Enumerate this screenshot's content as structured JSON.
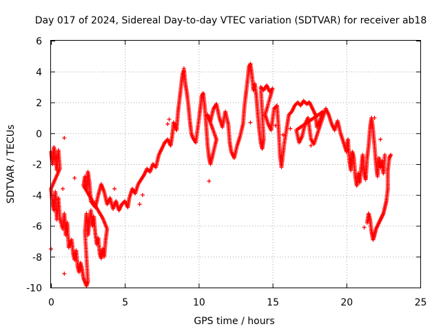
{
  "chart_data": {
    "type": "scatter",
    "title": "Day 017 of 2024, Sidereal Day-to-day VTEC variation (SDTVAR) for receiver ab18",
    "xlabel": "GPS time / hours",
    "ylabel": "SDTVAR / TECUs",
    "xlim": [
      0,
      25
    ],
    "ylim": [
      -10,
      6
    ],
    "xticks": [
      0,
      5,
      10,
      15,
      20,
      25
    ],
    "yticks": [
      -10,
      -8,
      -6,
      -4,
      -2,
      0,
      2,
      4,
      6
    ],
    "xtick_labels": [
      "0",
      "5",
      "10",
      "15",
      "20",
      "25"
    ],
    "ytick_labels": [
      "-10",
      "-8",
      "-6",
      "-4",
      "-2",
      "0",
      "2",
      "4",
      "6"
    ],
    "grid": true,
    "marker": "+",
    "color": "#ff0000",
    "series": [
      {
        "name": "SDTVAR",
        "trace": [
          [
            0.0,
            -1.2
          ],
          [
            0.1,
            -2.0
          ],
          [
            0.2,
            -0.9
          ],
          [
            0.3,
            -1.6
          ],
          [
            0.4,
            -2.4
          ],
          [
            0.5,
            -1.1
          ],
          [
            0.6,
            -2.3
          ],
          [
            0.0,
            -3.6
          ],
          [
            0.1,
            -4.5
          ],
          [
            0.2,
            -5.0
          ],
          [
            0.3,
            -3.8
          ],
          [
            0.4,
            -5.6
          ],
          [
            0.5,
            -4.2
          ],
          [
            0.6,
            -5.5
          ],
          [
            0.8,
            -6.2
          ],
          [
            0.9,
            -5.2
          ],
          [
            1.0,
            -6.6
          ],
          [
            1.1,
            -5.8
          ],
          [
            1.2,
            -7.4
          ],
          [
            1.4,
            -6.9
          ],
          [
            1.5,
            -7.8
          ],
          [
            1.6,
            -8.2
          ],
          [
            1.7,
            -7.6
          ],
          [
            1.8,
            -8.6
          ],
          [
            1.9,
            -9.0
          ],
          [
            2.0,
            -8.4
          ],
          [
            2.1,
            -8.8
          ],
          [
            2.2,
            -9.4
          ],
          [
            2.4,
            -9.9
          ],
          [
            2.5,
            -9.6
          ],
          [
            2.3,
            -6.4
          ],
          [
            2.4,
            -5.2
          ],
          [
            2.5,
            -6.6
          ],
          [
            2.6,
            -5.8
          ],
          [
            2.7,
            -5.0
          ],
          [
            2.8,
            -6.0
          ],
          [
            2.9,
            -5.4
          ],
          [
            3.0,
            -6.5
          ],
          [
            3.1,
            -7.2
          ],
          [
            3.2,
            -6.8
          ],
          [
            3.3,
            -7.8
          ],
          [
            3.4,
            -8.1
          ],
          [
            3.5,
            -7.5
          ],
          [
            3.6,
            -8.0
          ],
          [
            3.7,
            -6.9
          ],
          [
            3.8,
            -6.2
          ],
          [
            3.5,
            -5.5
          ],
          [
            2.2,
            -3.4
          ],
          [
            2.3,
            -2.8
          ],
          [
            2.4,
            -3.6
          ],
          [
            2.5,
            -2.5
          ],
          [
            2.6,
            -3.2
          ],
          [
            2.7,
            -4.4
          ],
          [
            3.0,
            -4.8
          ],
          [
            3.2,
            -4.0
          ],
          [
            3.4,
            -3.3
          ],
          [
            3.6,
            -3.8
          ],
          [
            3.8,
            -4.6
          ],
          [
            4.0,
            -4.2
          ],
          [
            4.2,
            -4.9
          ],
          [
            4.4,
            -4.4
          ],
          [
            4.6,
            -5.0
          ],
          [
            4.8,
            -4.6
          ],
          [
            5.0,
            -4.4
          ],
          [
            5.2,
            -4.8
          ],
          [
            5.3,
            -4.2
          ],
          [
            5.5,
            -3.6
          ],
          [
            5.7,
            -3.9
          ],
          [
            5.9,
            -3.3
          ],
          [
            6.1,
            -3.0
          ],
          [
            6.3,
            -2.7
          ],
          [
            6.5,
            -2.3
          ],
          [
            6.7,
            -2.5
          ],
          [
            6.9,
            -2.0
          ],
          [
            7.1,
            -2.2
          ],
          [
            7.3,
            -1.4
          ],
          [
            7.5,
            -1.0
          ],
          [
            7.7,
            -0.6
          ],
          [
            7.9,
            -0.4
          ],
          [
            8.1,
            -0.8
          ],
          [
            8.2,
            -0.2
          ],
          [
            8.3,
            0.7
          ],
          [
            8.5,
            0.2
          ],
          [
            8.6,
            1.4
          ],
          [
            8.7,
            2.2
          ],
          [
            8.8,
            3.0
          ],
          [
            8.9,
            3.8
          ],
          [
            9.0,
            4.1
          ],
          [
            9.1,
            3.2
          ],
          [
            9.2,
            2.6
          ],
          [
            9.3,
            1.8
          ],
          [
            9.4,
            0.8
          ],
          [
            9.5,
            0.0
          ],
          [
            9.6,
            -0.3
          ],
          [
            9.8,
            -0.6
          ],
          [
            10.0,
            0.8
          ],
          [
            10.1,
            1.6
          ],
          [
            10.2,
            2.4
          ],
          [
            10.3,
            2.6
          ],
          [
            10.4,
            1.8
          ],
          [
            10.5,
            0.6
          ],
          [
            10.6,
            -0.8
          ],
          [
            10.7,
            -1.6
          ],
          [
            10.8,
            -2.0
          ],
          [
            11.0,
            -1.2
          ],
          [
            11.2,
            -0.4
          ],
          [
            10.6,
            1.2
          ],
          [
            10.8,
            0.8
          ],
          [
            11.0,
            1.6
          ],
          [
            11.2,
            1.9
          ],
          [
            11.4,
            1.0
          ],
          [
            11.6,
            0.4
          ],
          [
            11.8,
            1.4
          ],
          [
            12.0,
            0.6
          ],
          [
            12.1,
            -0.6
          ],
          [
            12.2,
            -1.2
          ],
          [
            12.4,
            -1.6
          ],
          [
            12.6,
            -0.8
          ],
          [
            12.8,
            -0.2
          ],
          [
            13.0,
            0.6
          ],
          [
            13.1,
            1.8
          ],
          [
            13.2,
            2.6
          ],
          [
            13.3,
            3.4
          ],
          [
            13.4,
            4.3
          ],
          [
            13.5,
            4.5
          ],
          [
            13.6,
            3.8
          ],
          [
            13.7,
            2.8
          ],
          [
            13.8,
            3.2
          ],
          [
            13.9,
            2.4
          ],
          [
            14.0,
            1.2
          ],
          [
            14.1,
            0.2
          ],
          [
            14.2,
            -0.6
          ],
          [
            14.3,
            -1.0
          ],
          [
            14.4,
            -0.4
          ],
          [
            14.2,
            3.0
          ],
          [
            14.4,
            2.8
          ],
          [
            14.6,
            3.1
          ],
          [
            14.8,
            2.7
          ],
          [
            15.0,
            2.9
          ],
          [
            14.5,
            1.2
          ],
          [
            14.7,
            0.6
          ],
          [
            14.9,
            0.2
          ],
          [
            15.1,
            1.6
          ],
          [
            15.3,
            1.8
          ],
          [
            15.4,
            0.4
          ],
          [
            15.5,
            -1.4
          ],
          [
            15.6,
            -2.2
          ],
          [
            15.8,
            -0.6
          ],
          [
            16.0,
            0.6
          ],
          [
            16.1,
            1.2
          ],
          [
            16.3,
            1.4
          ],
          [
            16.5,
            1.8
          ],
          [
            16.7,
            2.0
          ],
          [
            16.9,
            1.8
          ],
          [
            17.1,
            2.1
          ],
          [
            17.3,
            1.9
          ],
          [
            17.5,
            2.0
          ],
          [
            17.7,
            1.6
          ],
          [
            17.9,
            1.2
          ],
          [
            18.0,
            0.4
          ],
          [
            18.2,
            0.8
          ],
          [
            18.4,
            1.4
          ],
          [
            16.6,
            0.2
          ],
          [
            16.8,
            -0.6
          ],
          [
            17.0,
            -0.2
          ],
          [
            17.2,
            0.6
          ],
          [
            17.4,
            1.0
          ],
          [
            17.6,
            -0.4
          ],
          [
            17.8,
            -0.7
          ],
          [
            18.6,
            1.6
          ],
          [
            18.8,
            1.2
          ],
          [
            19.0,
            0.6
          ],
          [
            19.2,
            0.2
          ],
          [
            19.4,
            0.8
          ],
          [
            19.6,
            0.0
          ],
          [
            19.8,
            -0.6
          ],
          [
            20.0,
            -1.2
          ],
          [
            20.1,
            -0.4
          ],
          [
            20.2,
            -1.8
          ],
          [
            20.3,
            -2.4
          ],
          [
            20.4,
            -1.2
          ],
          [
            20.5,
            -1.6
          ],
          [
            20.6,
            -2.8
          ],
          [
            20.7,
            -3.4
          ],
          [
            20.8,
            -2.6
          ],
          [
            20.9,
            -3.2
          ],
          [
            21.0,
            -2.2
          ],
          [
            21.1,
            -1.4
          ],
          [
            21.2,
            -2.6
          ],
          [
            21.3,
            -3.0
          ],
          [
            21.4,
            -1.6
          ],
          [
            21.5,
            -0.8
          ],
          [
            21.6,
            0.4
          ],
          [
            21.7,
            1.0
          ],
          [
            21.8,
            0.2
          ],
          [
            21.9,
            -0.8
          ],
          [
            22.0,
            -2.0
          ],
          [
            22.1,
            -2.8
          ],
          [
            22.2,
            -1.6
          ],
          [
            22.3,
            -2.2
          ],
          [
            22.4,
            -1.8
          ],
          [
            22.5,
            -2.6
          ],
          [
            22.6,
            -1.4
          ],
          [
            21.4,
            -5.8
          ],
          [
            21.5,
            -5.2
          ],
          [
            21.6,
            -5.6
          ],
          [
            21.7,
            -6.4
          ],
          [
            21.8,
            -6.9
          ],
          [
            21.9,
            -6.6
          ],
          [
            22.0,
            -6.2
          ],
          [
            22.1,
            -6.0
          ],
          [
            22.2,
            -5.8
          ],
          [
            22.3,
            -5.6
          ],
          [
            22.4,
            -5.4
          ],
          [
            22.5,
            -5.2
          ],
          [
            22.6,
            -4.8
          ],
          [
            22.7,
            -4.4
          ],
          [
            22.8,
            -3.6
          ],
          [
            22.8,
            -2.4
          ],
          [
            22.9,
            -1.6
          ],
          [
            23.0,
            -1.4
          ]
        ],
        "isolated": [
          [
            0.0,
            -7.5
          ],
          [
            0.9,
            -9.1
          ],
          [
            0.9,
            -0.3
          ],
          [
            0.8,
            -3.6
          ],
          [
            1.6,
            -2.9
          ],
          [
            4.3,
            -3.6
          ],
          [
            6.0,
            -4.6
          ],
          [
            6.2,
            -4.0
          ],
          [
            7.9,
            0.6
          ],
          [
            8.0,
            0.9
          ],
          [
            9.0,
            4.2
          ],
          [
            10.7,
            -3.1
          ],
          [
            13.5,
            0.7
          ],
          [
            15.7,
            -0.1
          ],
          [
            16.2,
            0.3
          ],
          [
            15.2,
            0.5
          ],
          [
            17.6,
            -0.8
          ],
          [
            21.2,
            -6.1
          ],
          [
            21.9,
            1.0
          ],
          [
            22.3,
            -0.4
          ]
        ]
      }
    ]
  }
}
